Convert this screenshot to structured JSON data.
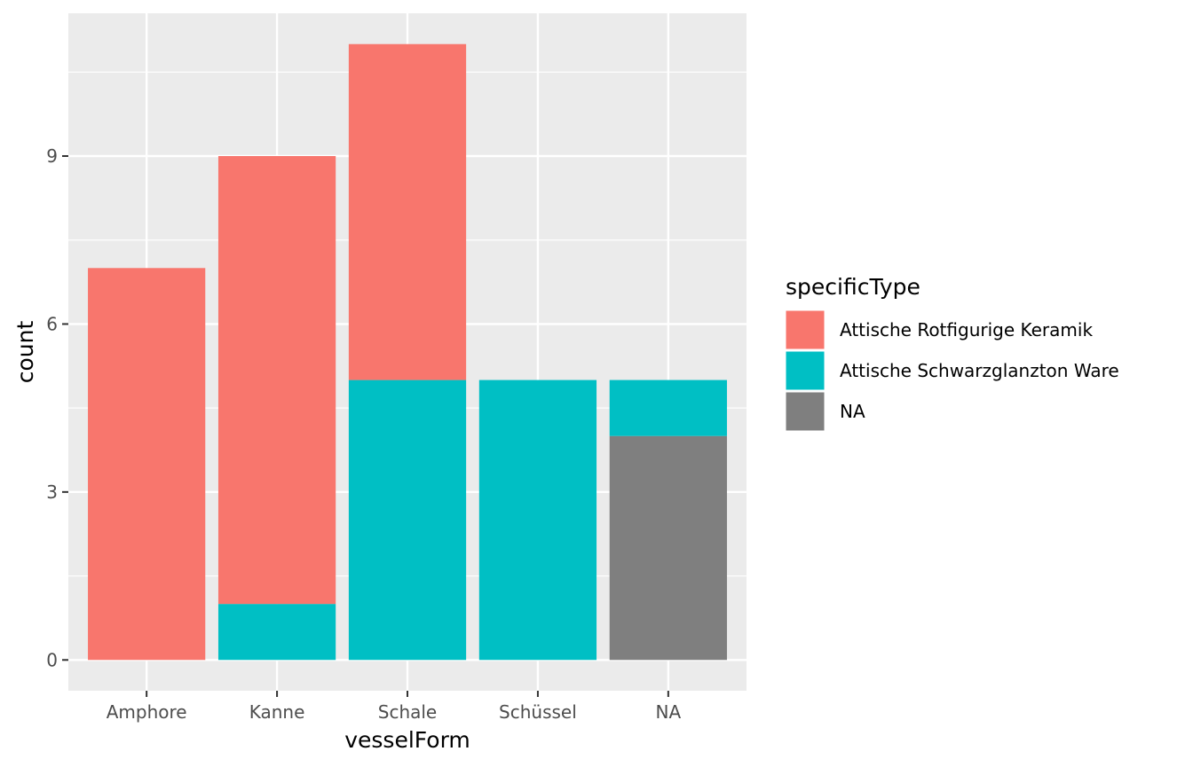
{
  "chart_data": {
    "type": "bar",
    "stacked": true,
    "categories": [
      "Amphore",
      "Kanne",
      "Schale",
      "Schüssel",
      "NA"
    ],
    "series": [
      {
        "name": "Attische Rotfigurige Keramik",
        "color": "#F8766D",
        "values": [
          7,
          8,
          6,
          0,
          0
        ]
      },
      {
        "name": "Attische Schwarzglanzton Ware",
        "color": "#00BFC4",
        "values": [
          0,
          1,
          5,
          5,
          1
        ]
      },
      {
        "name": "NA",
        "color": "#7F7F7F",
        "values": [
          0,
          0,
          0,
          0,
          4
        ]
      }
    ],
    "stack_order_bottom_to_top": [
      "NA",
      "Attische Schwarzglanzton Ware",
      "Attische Rotfigurige Keramik"
    ],
    "xlabel": "vesselForm",
    "ylabel": "count",
    "ylim": [
      -0.55,
      11.55
    ],
    "yticks": [
      0,
      3,
      6,
      9
    ],
    "ytick_labels": [
      "0",
      "3",
      "6",
      "9"
    ],
    "legend_title": "specificType",
    "legend_position": "right",
    "grid": true,
    "panel_background": "#EBEBEB",
    "gridline_color": "#FFFFFF"
  }
}
